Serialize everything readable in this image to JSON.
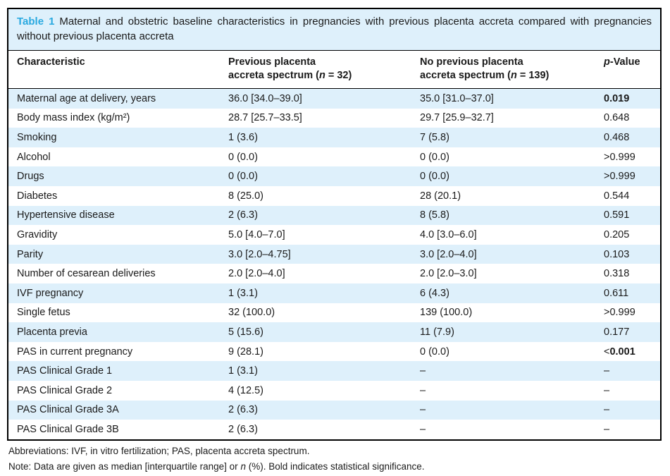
{
  "table": {
    "caption": {
      "label": "Table 1",
      "text": "Maternal and obstetric baseline characteristics in pregnancies with previous placenta accreta compared with pregnancies without previous placenta accreta"
    },
    "columns": {
      "characteristic": "Characteristic",
      "col2": {
        "line1": "Previous placenta",
        "line2_prefix": "accreta spectrum (",
        "n": "n",
        "line2_suffix": " = 32)"
      },
      "col3": {
        "line1": "No previous placenta",
        "line2_prefix": "accreta spectrum (",
        "n": "n",
        "line2_suffix": " = 139)"
      },
      "p": {
        "italic": "p",
        "rest": "-Value"
      }
    },
    "rows": [
      {
        "label": "Maternal age at delivery, years",
        "prev": "36.0 [34.0–39.0]",
        "no_prev": "35.0 [31.0–37.0]",
        "p_prefix": "",
        "p_value": "0.019",
        "p_bold": true
      },
      {
        "label": "Body mass index (kg/m²)",
        "prev": "28.7 [25.7–33.5]",
        "no_prev": "29.7 [25.9–32.7]",
        "p_prefix": "",
        "p_value": "0.648",
        "p_bold": false
      },
      {
        "label": "Smoking",
        "prev": "1 (3.6)",
        "no_prev": "7 (5.8)",
        "p_prefix": "",
        "p_value": "0.468",
        "p_bold": false
      },
      {
        "label": "Alcohol",
        "prev": "0 (0.0)",
        "no_prev": "0 (0.0)",
        "p_prefix": ">",
        "p_value": "0.999",
        "p_bold": false
      },
      {
        "label": "Drugs",
        "prev": "0 (0.0)",
        "no_prev": "0 (0.0)",
        "p_prefix": ">",
        "p_value": "0.999",
        "p_bold": false
      },
      {
        "label": "Diabetes",
        "prev": "8 (25.0)",
        "no_prev": "28 (20.1)",
        "p_prefix": "",
        "p_value": "0.544",
        "p_bold": false
      },
      {
        "label": "Hypertensive disease",
        "prev": "2 (6.3)",
        "no_prev": "8 (5.8)",
        "p_prefix": "",
        "p_value": "0.591",
        "p_bold": false
      },
      {
        "label": "Gravidity",
        "prev": "5.0 [4.0–7.0]",
        "no_prev": "4.0 [3.0–6.0]",
        "p_prefix": "",
        "p_value": "0.205",
        "p_bold": false
      },
      {
        "label": "Parity",
        "prev": "3.0 [2.0–4.75]",
        "no_prev": "3.0 [2.0–4.0]",
        "p_prefix": "",
        "p_value": "0.103",
        "p_bold": false
      },
      {
        "label": "Number of cesarean deliveries",
        "prev": "2.0 [2.0–4.0]",
        "no_prev": "2.0 [2.0–3.0]",
        "p_prefix": "",
        "p_value": "0.318",
        "p_bold": false
      },
      {
        "label": "IVF pregnancy",
        "prev": "1 (3.1)",
        "no_prev": "6 (4.3)",
        "p_prefix": "",
        "p_value": "0.611",
        "p_bold": false
      },
      {
        "label": "Single fetus",
        "prev": "32 (100.0)",
        "no_prev": "139 (100.0)",
        "p_prefix": ">",
        "p_value": "0.999",
        "p_bold": false
      },
      {
        "label": "Placenta previa",
        "prev": "5 (15.6)",
        "no_prev": "11 (7.9)",
        "p_prefix": "",
        "p_value": "0.177",
        "p_bold": false
      },
      {
        "label": "PAS in current pregnancy",
        "prev": "9 (28.1)",
        "no_prev": "0 (0.0)",
        "p_prefix": "<",
        "p_value": "0.001",
        "p_bold": true
      },
      {
        "label": "PAS Clinical Grade 1",
        "prev": "1 (3.1)",
        "no_prev": "–",
        "p_prefix": "",
        "p_value": "–",
        "p_bold": false
      },
      {
        "label": "PAS Clinical Grade 2",
        "prev": "4 (12.5)",
        "no_prev": "–",
        "p_prefix": "",
        "p_value": "–",
        "p_bold": false
      },
      {
        "label": "PAS Clinical Grade 3A",
        "prev": "2 (6.3)",
        "no_prev": "–",
        "p_prefix": "",
        "p_value": "–",
        "p_bold": false
      },
      {
        "label": "PAS Clinical Grade 3B",
        "prev": "2 (6.3)",
        "no_prev": "–",
        "p_prefix": "",
        "p_value": "–",
        "p_bold": false
      }
    ],
    "notes": {
      "abbreviations": "Abbreviations: IVF, in vitro fertilization; PAS, placenta accreta spectrum.",
      "note_prefix": "Note: Data are given as median [interquartile range] or ",
      "note_italic": "n",
      "note_suffix": " (%). Bold indicates statistical significance."
    },
    "colors": {
      "accent_blue": "#29a9e0",
      "stripe_blue": "#def0fb",
      "border_black": "#000000"
    }
  }
}
